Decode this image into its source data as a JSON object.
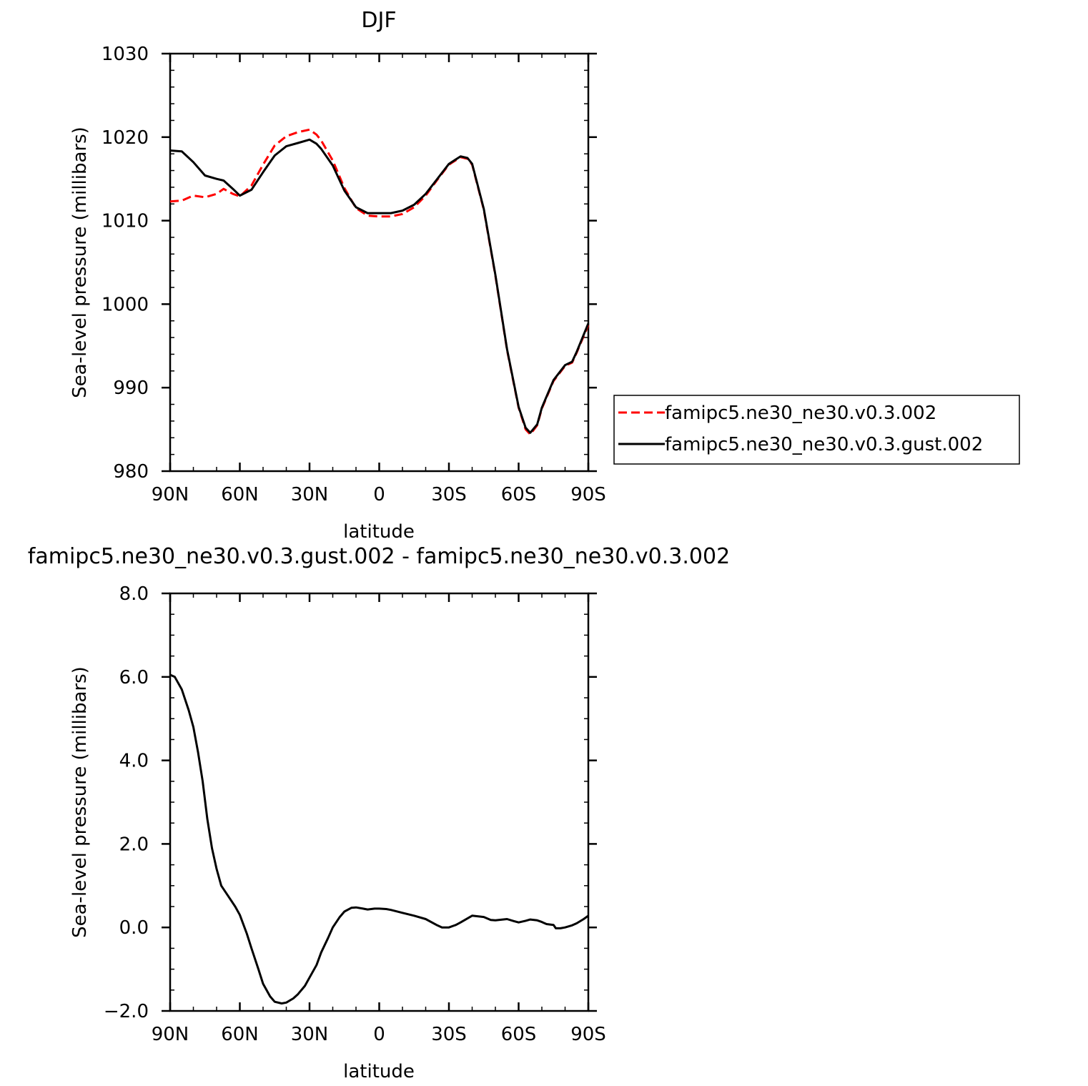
{
  "chart_data": [
    {
      "type": "line",
      "title": "DJF",
      "xlabel": "latitude",
      "ylabel": "Sea-level pressure (millibars)",
      "xlim": [
        90,
        -90
      ],
      "ylim": [
        980,
        1030
      ],
      "xticks": [
        90,
        60,
        30,
        0,
        -30,
        -60,
        -90
      ],
      "xtick_labels": [
        "90N",
        "60N",
        "30N",
        "0",
        "30S",
        "60S",
        "90S"
      ],
      "yticks": [
        980,
        990,
        1000,
        1010,
        1020,
        1030
      ],
      "ytick_labels": [
        "980",
        "990",
        "1000",
        "1010",
        "1020",
        "1030"
      ],
      "legend_position": "right",
      "series": [
        {
          "name": "famipc5.ne30_ne30.v0.3.002",
          "color": "#ff0000",
          "style": "dashed",
          "x": [
            90,
            85,
            80,
            75,
            70,
            67,
            63,
            60,
            55,
            50,
            45,
            40,
            35,
            30,
            27,
            25,
            20,
            15,
            10,
            5,
            0,
            -5,
            -10,
            -15,
            -20,
            -25,
            -30,
            -35,
            -38,
            -40,
            -45,
            -50,
            -55,
            -60,
            -63,
            -65,
            -68,
            -70,
            -75,
            -80,
            -83,
            -85,
            -90
          ],
          "y": [
            1012.3,
            1012.4,
            1013.0,
            1012.8,
            1013.2,
            1013.8,
            1013.2,
            1012.9,
            1014.2,
            1016.7,
            1019.0,
            1020.1,
            1020.6,
            1020.9,
            1020.3,
            1019.6,
            1017.2,
            1013.9,
            1011.5,
            1010.6,
            1010.5,
            1010.5,
            1010.8,
            1011.6,
            1013.0,
            1014.9,
            1016.7,
            1017.6,
            1017.4,
            1016.7,
            1011.3,
            1003.4,
            994.5,
            987.6,
            985.0,
            984.4,
            985.5,
            987.5,
            990.8,
            992.6,
            993.0,
            994.2,
            997.5
          ]
        },
        {
          "name": "famipc5.ne30_ne30.v0.3.gust.002",
          "color": "#000000",
          "style": "solid",
          "x": [
            90,
            85,
            80,
            75,
            70,
            67,
            63,
            60,
            55,
            50,
            45,
            40,
            35,
            30,
            27,
            25,
            20,
            15,
            10,
            5,
            0,
            -5,
            -10,
            -15,
            -20,
            -25,
            -30,
            -35,
            -38,
            -40,
            -45,
            -50,
            -55,
            -60,
            -63,
            -65,
            -68,
            -70,
            -75,
            -80,
            -83,
            -85,
            -90
          ],
          "y": [
            1018.4,
            1018.3,
            1017.0,
            1015.4,
            1015.0,
            1014.8,
            1013.8,
            1013.0,
            1013.7,
            1015.8,
            1017.8,
            1018.9,
            1019.3,
            1019.7,
            1019.2,
            1018.6,
            1016.6,
            1013.6,
            1011.6,
            1010.9,
            1010.9,
            1010.9,
            1011.2,
            1011.9,
            1013.2,
            1015.0,
            1016.8,
            1017.7,
            1017.5,
            1016.8,
            1011.4,
            1003.5,
            994.6,
            987.7,
            985.2,
            984.6,
            985.6,
            987.6,
            990.9,
            992.7,
            993.1,
            994.3,
            997.7
          ]
        }
      ]
    },
    {
      "type": "line",
      "title": "famipc5.ne30_ne30.v0.3.gust.002 - famipc5.ne30_ne30.v0.3.002",
      "xlabel": "latitude",
      "ylabel": "Sea-level pressure (millibars)",
      "xlim": [
        90,
        -90
      ],
      "ylim": [
        -2.0,
        8.0
      ],
      "xticks": [
        90,
        60,
        30,
        0,
        -30,
        -60,
        -90
      ],
      "xtick_labels": [
        "90N",
        "60N",
        "30N",
        "0",
        "30S",
        "60S",
        "90S"
      ],
      "yticks": [
        -2.0,
        0.0,
        2.0,
        4.0,
        6.0,
        8.0
      ],
      "ytick_labels": [
        "−2.0",
        "0.0",
        "2.0",
        "4.0",
        "6.0",
        "8.0"
      ],
      "series": [
        {
          "color": "#000000",
          "style": "solid",
          "x": [
            90,
            88,
            85,
            82,
            80,
            78,
            76,
            74,
            72,
            70,
            68,
            65,
            62,
            60,
            57,
            55,
            52,
            50,
            47,
            45,
            42,
            40,
            37,
            35,
            32,
            30,
            27,
            25,
            22,
            20,
            17,
            15,
            12,
            10,
            7,
            5,
            2,
            0,
            -3,
            -5,
            -10,
            -15,
            -20,
            -25,
            -27,
            -30,
            -33,
            -35,
            -40,
            -45,
            -48,
            -50,
            -55,
            -58,
            -60,
            -63,
            -65,
            -68,
            -70,
            -72,
            -75,
            -76,
            -78,
            -80,
            -83,
            -85,
            -88,
            -90
          ],
          "y": [
            6.05,
            6.0,
            5.7,
            5.2,
            4.8,
            4.2,
            3.5,
            2.6,
            1.9,
            1.4,
            1.0,
            0.75,
            0.5,
            0.3,
            -0.15,
            -0.5,
            -1.0,
            -1.35,
            -1.65,
            -1.78,
            -1.82,
            -1.8,
            -1.7,
            -1.6,
            -1.4,
            -1.2,
            -0.9,
            -0.6,
            -0.25,
            0.0,
            0.25,
            0.38,
            0.47,
            0.48,
            0.45,
            0.43,
            0.45,
            0.45,
            0.44,
            0.42,
            0.35,
            0.28,
            0.2,
            0.05,
            0.0,
            0.0,
            0.06,
            0.12,
            0.28,
            0.25,
            0.18,
            0.17,
            0.2,
            0.15,
            0.12,
            0.16,
            0.19,
            0.17,
            0.13,
            0.08,
            0.06,
            -0.02,
            -0.02,
            0.0,
            0.05,
            0.1,
            0.2,
            0.28
          ]
        }
      ]
    }
  ]
}
